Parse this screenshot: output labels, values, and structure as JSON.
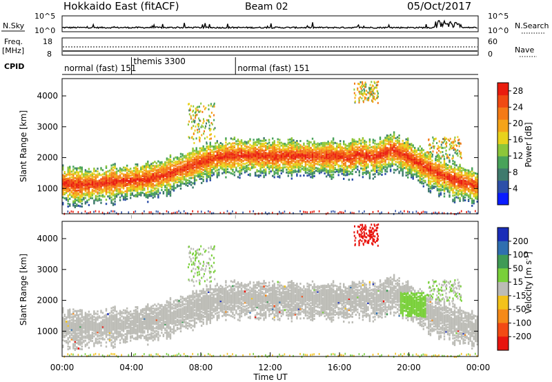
{
  "header": {
    "station": "Hokkaido East (fitACF)",
    "beam": "Beam 02",
    "date": "05/Oct/2017"
  },
  "top_panels": {
    "nsky": {
      "label": "N.Sky",
      "ticks": [
        "10^5",
        "10^0"
      ],
      "right_label": "N.Search",
      "right_ticks": [
        "10^5",
        "10^0"
      ]
    },
    "freq": {
      "label_line1": "Freq.",
      "label_line2": "[MHz]",
      "ticks": [
        "18",
        "8"
      ],
      "right_label": "Nave",
      "right_ticks": [
        "60",
        "0"
      ]
    },
    "cpid": {
      "label": "CPID",
      "segments": [
        {
          "name": "normal (fast) 151",
          "start_hour": 0
        },
        {
          "name": "themis 3300",
          "start_hour": 4
        },
        {
          "name": "normal (fast) 151",
          "start_hour": 10
        }
      ]
    }
  },
  "chart_data": [
    {
      "type": "heatmap",
      "name": "power",
      "ylabel": "Slant Range [km]",
      "xlabel": "",
      "ylim": [
        180,
        4560
      ],
      "xlim": [
        0,
        24
      ],
      "yticks": [
        "1000",
        "2000",
        "3000",
        "4000"
      ],
      "x_tick_hours": [
        0,
        4,
        8,
        12,
        16,
        20,
        24
      ],
      "colorbar": {
        "label": "Power [dB]",
        "ticks": [
          "4",
          "8",
          "12",
          "16",
          "20",
          "24",
          "28"
        ],
        "range": [
          0,
          30
        ],
        "colors": [
          "#0a1cff",
          "#2d4fa8",
          "#3f7a6d",
          "#49a35a",
          "#8cc63a",
          "#e8d21c",
          "#f5a41a",
          "#f47a16",
          "#f04a12",
          "#ea1c0e"
        ]
      },
      "series": [
        {
          "name": "main band",
          "hours": [
            0,
            1,
            2,
            3,
            4,
            5,
            6,
            6.5,
            7,
            7.5,
            8,
            9,
            10,
            11,
            12,
            13,
            14,
            15,
            16,
            16.5,
            17,
            18,
            19,
            20,
            21,
            22,
            23,
            24
          ],
          "range_km": [
            1200,
            1150,
            1180,
            1250,
            1300,
            1350,
            1500,
            1600,
            1700,
            1800,
            1900,
            2050,
            2120,
            2110,
            2100,
            2090,
            2080,
            2070,
            2100,
            2000,
            2150,
            2050,
            2300,
            2050,
            1700,
            1450,
            1250,
            1100
          ]
        }
      ]
    },
    {
      "type": "heatmap",
      "name": "velocity",
      "ylabel": "Slant Range [km]",
      "xlabel": "Time UT",
      "ylim": [
        180,
        4560
      ],
      "xlim": [
        0,
        24
      ],
      "yticks": [
        "1000",
        "2000",
        "3000",
        "4000"
      ],
      "x_tick_labels": [
        "00:00",
        "04:00",
        "08:00",
        "12:00",
        "16:00",
        "20:00",
        "00:00"
      ],
      "colorbar": {
        "label": "Velocity [m s^-1]",
        "ticks": [
          "200",
          "100",
          "50",
          "15",
          "-15",
          "-50",
          "-100",
          "-200"
        ],
        "colors": [
          "#1a2db8",
          "#2f6fb0",
          "#3f9a55",
          "#79d03a",
          "#bcbcb6",
          "#f3c21a",
          "#f58a18",
          "#f34a14",
          "#e8140e"
        ]
      }
    }
  ]
}
